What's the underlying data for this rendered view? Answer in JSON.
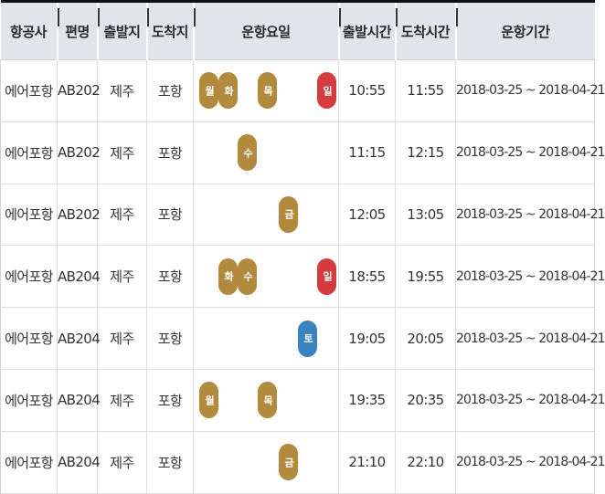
{
  "headers": [
    "항공사",
    "편명",
    "출발지",
    "도착지",
    "운항요일",
    "출발시간",
    "도착시간",
    "운항기간"
  ],
  "colors": {
    "weekday": "#b28a3e",
    "saturday": "#3b82c0",
    "sunday": "#d43c40",
    "header_bg": "#e1e4e9"
  },
  "rows": [
    {
      "airline": "에어포항",
      "flight": "AB202",
      "origin": "제주",
      "destination": "포항",
      "days": [
        {
          "label": "월",
          "slot": "mon"
        },
        {
          "label": "화",
          "slot": "tue"
        },
        {
          "label": "목",
          "slot": "thu"
        },
        {
          "label": "일",
          "slot": "sun"
        }
      ],
      "departure": "10:55",
      "arrival": "11:55",
      "period": "2018-03-25 ~ 2018-04-21"
    },
    {
      "airline": "에어포항",
      "flight": "AB202",
      "origin": "제주",
      "destination": "포항",
      "days": [
        {
          "label": "수",
          "slot": "wed"
        }
      ],
      "departure": "11:15",
      "arrival": "12:15",
      "period": "2018-03-25 ~ 2018-04-21"
    },
    {
      "airline": "에어포항",
      "flight": "AB202",
      "origin": "제주",
      "destination": "포항",
      "days": [
        {
          "label": "금",
          "slot": "fri"
        }
      ],
      "departure": "12:05",
      "arrival": "13:05",
      "period": "2018-03-25 ~ 2018-04-21"
    },
    {
      "airline": "에어포항",
      "flight": "AB204",
      "origin": "제주",
      "destination": "포항",
      "days": [
        {
          "label": "화",
          "slot": "tue"
        },
        {
          "label": "수",
          "slot": "wed"
        },
        {
          "label": "일",
          "slot": "sun"
        }
      ],
      "departure": "18:55",
      "arrival": "19:55",
      "period": "2018-03-25 ~ 2018-04-21"
    },
    {
      "airline": "에어포항",
      "flight": "AB204",
      "origin": "제주",
      "destination": "포항",
      "days": [
        {
          "label": "토",
          "slot": "sat"
        }
      ],
      "departure": "19:05",
      "arrival": "20:05",
      "period": "2018-03-25 ~ 2018-04-21"
    },
    {
      "airline": "에어포항",
      "flight": "AB204",
      "origin": "제주",
      "destination": "포항",
      "days": [
        {
          "label": "월",
          "slot": "mon"
        },
        {
          "label": "목",
          "slot": "thu"
        }
      ],
      "departure": "19:35",
      "arrival": "20:35",
      "period": "2018-03-25 ~ 2018-04-21"
    },
    {
      "airline": "에어포항",
      "flight": "AB204",
      "origin": "제주",
      "destination": "포항",
      "days": [
        {
          "label": "금",
          "slot": "fri"
        }
      ],
      "departure": "21:10",
      "arrival": "22:10",
      "period": "2018-03-25 ~ 2018-04-21"
    }
  ]
}
